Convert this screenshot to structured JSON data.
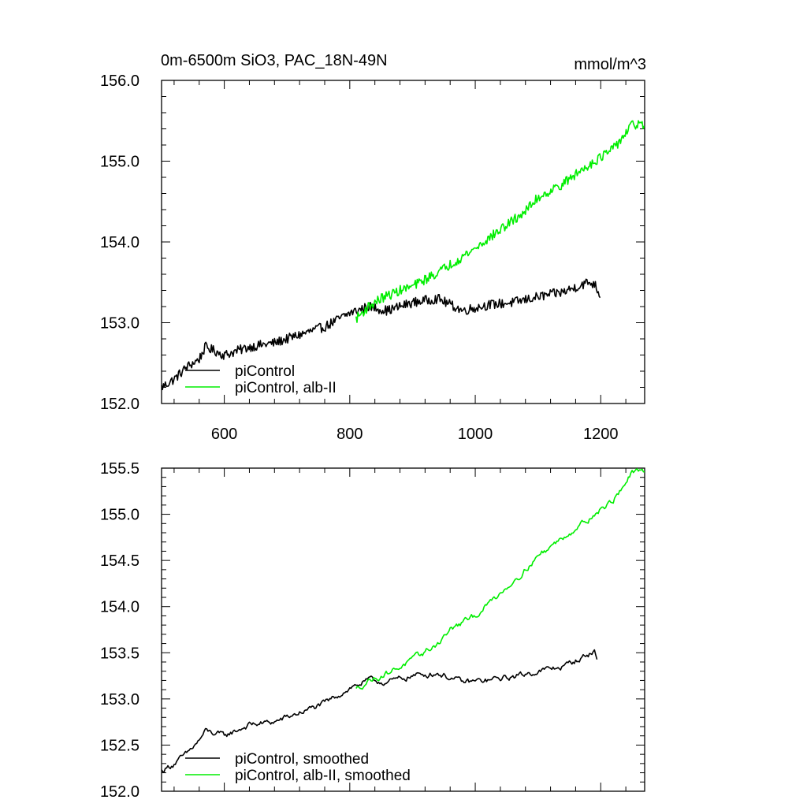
{
  "figure": {
    "title": "0m-6500m SiO3, PAC_18N-49N",
    "units": "mmol/m^3"
  },
  "colors": {
    "control": "#000000",
    "alb": "#00ee00",
    "axis": "#000000"
  },
  "chart_data": [
    {
      "type": "line",
      "panel": "top",
      "xlim": [
        500,
        1270
      ],
      "ylim": [
        152.0,
        156.0
      ],
      "x_ticks": [
        600,
        800,
        1000,
        1200
      ],
      "x_tick_labels": [
        "600",
        "800",
        "1000",
        "1200"
      ],
      "y_ticks": [
        152.0,
        153.0,
        154.0,
        155.0,
        156.0
      ],
      "y_tick_labels": [
        "152.0",
        "153.0",
        "154.0",
        "155.0",
        "156.0"
      ],
      "legend": "bottom-left",
      "series": [
        {
          "name": "piControl",
          "color": "#000000",
          "noise": 0.06,
          "x": [
            500,
            520,
            540,
            560,
            570,
            600,
            640,
            680,
            720,
            760,
            800,
            830,
            860,
            900,
            940,
            980,
            1020,
            1060,
            1100,
            1140,
            1180,
            1190,
            1200
          ],
          "y": [
            152.2,
            152.3,
            152.45,
            152.55,
            152.7,
            152.6,
            152.7,
            152.75,
            152.85,
            152.95,
            153.12,
            153.2,
            153.15,
            153.25,
            153.3,
            153.15,
            153.22,
            153.25,
            153.32,
            153.38,
            153.5,
            153.48,
            153.33
          ]
        },
        {
          "name": "piControl, alb-II",
          "color": "#00ee00",
          "noise": 0.06,
          "x": [
            810,
            830,
            850,
            880,
            900,
            940,
            960,
            1000,
            1040,
            1080,
            1100,
            1140,
            1180,
            1220,
            1250,
            1270
          ],
          "y": [
            153.05,
            153.2,
            153.3,
            153.4,
            153.45,
            153.62,
            153.72,
            153.92,
            154.15,
            154.38,
            154.55,
            154.72,
            154.95,
            155.15,
            155.45,
            155.45
          ]
        }
      ]
    },
    {
      "type": "line",
      "panel": "bottom",
      "xlim": [
        500,
        1270
      ],
      "ylim": [
        152.0,
        155.5
      ],
      "x_ticks": [
        600,
        800,
        1000,
        1200
      ],
      "y_ticks": [
        152.0,
        152.5,
        153.0,
        153.5,
        154.0,
        154.5,
        155.0,
        155.5
      ],
      "y_tick_labels": [
        "152.0",
        "152.5",
        "153.0",
        "153.5",
        "154.0",
        "154.5",
        "155.0",
        "155.5"
      ],
      "legend": "bottom-left",
      "series": [
        {
          "name": "piControl, smoothed",
          "color": "#000000",
          "noise": 0.025,
          "x": [
            500,
            520,
            540,
            560,
            570,
            600,
            640,
            680,
            720,
            760,
            800,
            830,
            860,
            900,
            940,
            980,
            1020,
            1060,
            1100,
            1140,
            1180,
            1190,
            1195
          ],
          "y": [
            152.22,
            152.3,
            152.4,
            152.55,
            152.65,
            152.6,
            152.72,
            152.75,
            152.85,
            152.95,
            153.12,
            153.2,
            153.18,
            153.25,
            153.28,
            153.18,
            153.2,
            153.24,
            153.3,
            153.35,
            153.48,
            153.52,
            153.4
          ]
        },
        {
          "name": "piControl, alb-II, smoothed",
          "color": "#00ee00",
          "noise": 0.025,
          "x": [
            810,
            830,
            850,
            880,
            900,
            940,
            960,
            1000,
            1040,
            1080,
            1100,
            1140,
            1180,
            1220,
            1250,
            1270
          ],
          "y": [
            153.1,
            153.2,
            153.25,
            153.35,
            153.42,
            153.6,
            153.75,
            153.9,
            154.15,
            154.4,
            154.55,
            154.75,
            154.95,
            155.15,
            155.45,
            155.45
          ]
        }
      ]
    }
  ]
}
